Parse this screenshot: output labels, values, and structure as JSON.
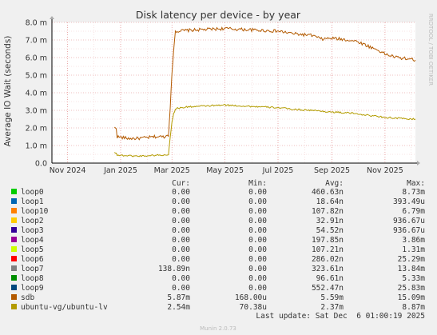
{
  "chart_data": {
    "type": "line",
    "title": "Disk latency per device - by year",
    "ylabel": "Average IO Wait (seconds)",
    "side_label": "RRDTOOL / TOBI OETIKER",
    "ylim": [
      0,
      8.0
    ],
    "y_ticks": [
      {
        "value": 0,
        "label": "0.0"
      },
      {
        "value": 1.0,
        "label": "1.0 m"
      },
      {
        "value": 2.0,
        "label": "2.0 m"
      },
      {
        "value": 3.0,
        "label": "3.0 m"
      },
      {
        "value": 4.0,
        "label": "4.0 m"
      },
      {
        "value": 5.0,
        "label": "5.0 m"
      },
      {
        "value": 6.0,
        "label": "6.0 m"
      },
      {
        "value": 7.0,
        "label": "7.0 m"
      },
      {
        "value": 8.0,
        "label": "8.0 m"
      }
    ],
    "x_range": [
      "2024-10-14",
      "2025-12-06"
    ],
    "x_ticks": [
      {
        "date": "2024-11-01",
        "label": "Nov 2024"
      },
      {
        "date": "2025-01-01",
        "label": "Jan 2025"
      },
      {
        "date": "2025-03-01",
        "label": "Mar 2025"
      },
      {
        "date": "2025-05-01",
        "label": "May 2025"
      },
      {
        "date": "2025-07-01",
        "label": "Jul 2025"
      },
      {
        "date": "2025-09-01",
        "label": "Sep 2025"
      },
      {
        "date": "2025-11-01",
        "label": "Nov 2025"
      }
    ],
    "series": [
      {
        "name": "sdb",
        "color": "#b35a00",
        "x": [
          "2024-12-25",
          "2024-12-27",
          "2024-12-28",
          "2025-01-10",
          "2025-01-20",
          "2025-02-01",
          "2025-02-10",
          "2025-02-20",
          "2025-02-25",
          "2025-02-27",
          "2025-03-01",
          "2025-03-03",
          "2025-03-05",
          "2025-03-20",
          "2025-04-10",
          "2025-05-01",
          "2025-05-20",
          "2025-06-10",
          "2025-07-01",
          "2025-07-20",
          "2025-08-10",
          "2025-08-20",
          "2025-09-01",
          "2025-09-20",
          "2025-10-01",
          "2025-10-15",
          "2025-10-25",
          "2025-11-01",
          "2025-11-15",
          "2025-12-01",
          "2025-12-06"
        ],
        "y": [
          2.0,
          2.0,
          1.5,
          1.4,
          1.4,
          1.45,
          1.5,
          1.5,
          1.6,
          3.2,
          5.0,
          6.5,
          7.5,
          7.55,
          7.6,
          7.65,
          7.6,
          7.55,
          7.5,
          7.35,
          7.25,
          7.05,
          7.1,
          7.0,
          6.9,
          6.6,
          6.4,
          6.2,
          6.0,
          5.9,
          5.85
        ]
      },
      {
        "name": "ubuntu-vg/ubuntu-lv",
        "color": "#b39b00",
        "x": [
          "2024-12-25",
          "2024-12-27",
          "2024-12-28",
          "2025-01-10",
          "2025-01-20",
          "2025-02-01",
          "2025-02-10",
          "2025-02-20",
          "2025-02-25",
          "2025-02-27",
          "2025-03-01",
          "2025-03-03",
          "2025-03-05",
          "2025-03-20",
          "2025-04-10",
          "2025-05-01",
          "2025-05-20",
          "2025-06-10",
          "2025-07-01",
          "2025-07-20",
          "2025-08-10",
          "2025-08-20",
          "2025-09-01",
          "2025-09-20",
          "2025-10-01",
          "2025-10-15",
          "2025-10-25",
          "2025-11-01",
          "2025-11-15",
          "2025-12-01",
          "2025-12-06"
        ],
        "y": [
          0.6,
          0.6,
          0.45,
          0.42,
          0.4,
          0.42,
          0.45,
          0.45,
          0.5,
          1.5,
          2.3,
          2.8,
          3.1,
          3.2,
          3.25,
          3.3,
          3.25,
          3.2,
          3.15,
          3.05,
          3.0,
          2.95,
          2.9,
          2.85,
          2.8,
          2.7,
          2.65,
          2.6,
          2.55,
          2.5,
          2.5
        ]
      }
    ]
  },
  "legend": {
    "headers": {
      "cur": "Cur:",
      "min": "Min:",
      "avg": "Avg:",
      "max": "Max:"
    },
    "rows": [
      {
        "name": "loop0",
        "color": "#00cc00",
        "cur": "0.00",
        "min": "0.00",
        "avg": "460.63n",
        "max": "8.73m"
      },
      {
        "name": "loop1",
        "color": "#0066b3",
        "cur": "0.00",
        "min": "0.00",
        "avg": "18.64n",
        "max": "393.49u"
      },
      {
        "name": "loop10",
        "color": "#ff8000",
        "cur": "0.00",
        "min": "0.00",
        "avg": "107.82n",
        "max": "6.79m"
      },
      {
        "name": "loop2",
        "color": "#ffcc00",
        "cur": "0.00",
        "min": "0.00",
        "avg": "32.91n",
        "max": "936.67u"
      },
      {
        "name": "loop3",
        "color": "#330099",
        "cur": "0.00",
        "min": "0.00",
        "avg": "54.52n",
        "max": "936.67u"
      },
      {
        "name": "loop4",
        "color": "#990099",
        "cur": "0.00",
        "min": "0.00",
        "avg": "197.85n",
        "max": "3.86m"
      },
      {
        "name": "loop5",
        "color": "#ccff00",
        "cur": "0.00",
        "min": "0.00",
        "avg": "107.21n",
        "max": "1.31m"
      },
      {
        "name": "loop6",
        "color": "#ff0000",
        "cur": "0.00",
        "min": "0.00",
        "avg": "286.02n",
        "max": "25.29m"
      },
      {
        "name": "loop7",
        "color": "#808080",
        "cur": "138.89n",
        "min": "0.00",
        "avg": "323.61n",
        "max": "13.84m"
      },
      {
        "name": "loop8",
        "color": "#008f00",
        "cur": "0.00",
        "min": "0.00",
        "avg": "96.61n",
        "max": "5.33m"
      },
      {
        "name": "loop9",
        "color": "#00487d",
        "cur": "0.00",
        "min": "0.00",
        "avg": "552.47n",
        "max": "25.83m"
      },
      {
        "name": "sdb",
        "color": "#b35a00",
        "cur": "5.87m",
        "min": "168.00u",
        "avg": "5.59m",
        "max": "15.09m"
      },
      {
        "name": "ubuntu-vg/ubuntu-lv",
        "color": "#b39b00",
        "cur": "2.54m",
        "min": "70.38u",
        "avg": "2.37m",
        "max": "8.87m"
      }
    ]
  },
  "footer": {
    "last_update": "Last update: Sat Dec  6 01:00:19 2025",
    "munin": "Munin 2.0.73"
  }
}
